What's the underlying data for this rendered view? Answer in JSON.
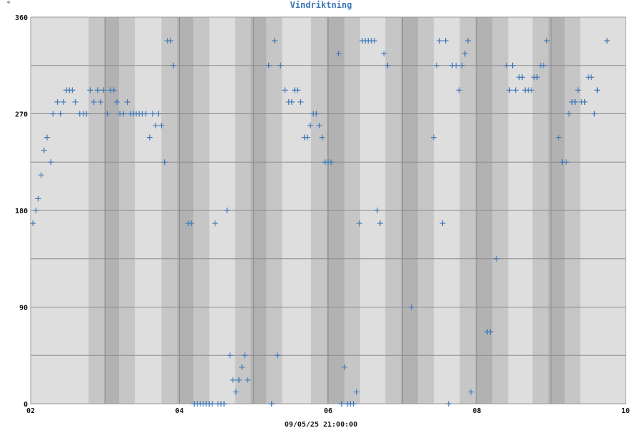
{
  "chart_data": {
    "type": "scatter",
    "title": "Vindriktning",
    "ylabel": "°",
    "xlabel": "09/05/25 21:00:00",
    "xlim": [
      2,
      10
    ],
    "ylim": [
      0,
      360
    ],
    "x_ticks": [
      2,
      4,
      6,
      8,
      10
    ],
    "x_tick_labels": [
      "02",
      "04",
      "06",
      "08",
      "10"
    ],
    "y_ticks": [
      0,
      90,
      180,
      270,
      360
    ],
    "y_tick_labels": [
      "0",
      "90",
      "180",
      "270",
      "360"
    ],
    "grid": true,
    "marker": "plus",
    "colors": {
      "points": "#3d77b8",
      "title": "#3d77b8",
      "plot_bg": "#dedede",
      "shade": "#c6c6c6",
      "dark_band": "#b2b2b2",
      "grid": "#8a8a8a"
    },
    "bands": [
      {
        "x0": 2.99,
        "x1": 3.19
      },
      {
        "x0": 3.97,
        "x1": 4.19
      },
      {
        "x0": 4.96,
        "x1": 5.17
      },
      {
        "x0": 5.98,
        "x1": 6.22
      },
      {
        "x0": 6.98,
        "x1": 7.21
      },
      {
        "x0": 7.98,
        "x1": 8.21
      },
      {
        "x0": 8.96,
        "x1": 9.18
      }
    ],
    "series": [
      {
        "points": [
          [
            2.03,
            168
          ],
          [
            2.07,
            180
          ],
          [
            2.1,
            191
          ],
          [
            2.14,
            213
          ],
          [
            2.18,
            236
          ],
          [
            2.22,
            248
          ],
          [
            2.27,
            225
          ],
          [
            2.3,
            270
          ],
          [
            2.36,
            281
          ],
          [
            2.4,
            270
          ],
          [
            2.44,
            281
          ],
          [
            2.48,
            292
          ],
          [
            2.52,
            292
          ],
          [
            2.56,
            292
          ],
          [
            2.6,
            281
          ],
          [
            2.66,
            270
          ],
          [
            2.71,
            270
          ],
          [
            2.75,
            270
          ],
          [
            2.8,
            292
          ],
          [
            2.85,
            281
          ],
          [
            2.9,
            292
          ],
          [
            2.94,
            281
          ],
          [
            2.98,
            292
          ],
          [
            3.03,
            270
          ],
          [
            3.07,
            292
          ],
          [
            3.12,
            292
          ],
          [
            3.16,
            281
          ],
          [
            3.2,
            270
          ],
          [
            3.25,
            270
          ],
          [
            3.3,
            281
          ],
          [
            3.34,
            270
          ],
          [
            3.38,
            270
          ],
          [
            3.42,
            270
          ],
          [
            3.46,
            270
          ],
          [
            3.5,
            270
          ],
          [
            3.55,
            270
          ],
          [
            3.6,
            248
          ],
          [
            3.64,
            270
          ],
          [
            3.68,
            259
          ],
          [
            3.72,
            270
          ],
          [
            3.76,
            259
          ],
          [
            3.8,
            225
          ],
          [
            3.84,
            338
          ],
          [
            3.88,
            338
          ],
          [
            3.92,
            315
          ],
          [
            4.12,
            168
          ],
          [
            4.16,
            168
          ],
          [
            4.2,
            0
          ],
          [
            4.24,
            0
          ],
          [
            4.28,
            0
          ],
          [
            4.32,
            0
          ],
          [
            4.36,
            0
          ],
          [
            4.4,
            0
          ],
          [
            4.44,
            0
          ],
          [
            4.48,
            168
          ],
          [
            4.52,
            0
          ],
          [
            4.56,
            0
          ],
          [
            4.6,
            0
          ],
          [
            4.64,
            180
          ],
          [
            4.68,
            45
          ],
          [
            4.72,
            22
          ],
          [
            4.76,
            11
          ],
          [
            4.8,
            22
          ],
          [
            4.84,
            34
          ],
          [
            4.88,
            45
          ],
          [
            4.92,
            22
          ],
          [
            5.2,
            315
          ],
          [
            5.24,
            0
          ],
          [
            5.28,
            338
          ],
          [
            5.32,
            45
          ],
          [
            5.36,
            315
          ],
          [
            5.42,
            292
          ],
          [
            5.47,
            281
          ],
          [
            5.51,
            281
          ],
          [
            5.55,
            292
          ],
          [
            5.59,
            292
          ],
          [
            5.63,
            281
          ],
          [
            5.68,
            248
          ],
          [
            5.72,
            248
          ],
          [
            5.76,
            259
          ],
          [
            5.8,
            270
          ],
          [
            5.84,
            270
          ],
          [
            5.88,
            259
          ],
          [
            5.92,
            248
          ],
          [
            5.96,
            225
          ],
          [
            6.0,
            225
          ],
          [
            6.04,
            225
          ],
          [
            6.14,
            326
          ],
          [
            6.18,
            0
          ],
          [
            6.22,
            34
          ],
          [
            6.26,
            0
          ],
          [
            6.3,
            0
          ],
          [
            6.34,
            0
          ],
          [
            6.38,
            11
          ],
          [
            6.42,
            168
          ],
          [
            6.46,
            338
          ],
          [
            6.5,
            338
          ],
          [
            6.54,
            338
          ],
          [
            6.58,
            338
          ],
          [
            6.62,
            338
          ],
          [
            6.66,
            180
          ],
          [
            6.7,
            168
          ],
          [
            6.75,
            326
          ],
          [
            6.8,
            315
          ],
          [
            7.12,
            90
          ],
          [
            7.42,
            248
          ],
          [
            7.46,
            315
          ],
          [
            7.5,
            338
          ],
          [
            7.54,
            168
          ],
          [
            7.58,
            338
          ],
          [
            7.62,
            0
          ],
          [
            7.67,
            315
          ],
          [
            7.72,
            315
          ],
          [
            7.76,
            292
          ],
          [
            7.8,
            315
          ],
          [
            7.84,
            326
          ],
          [
            7.88,
            338
          ],
          [
            7.92,
            11
          ],
          [
            8.14,
            67
          ],
          [
            8.18,
            67
          ],
          [
            8.26,
            135
          ],
          [
            8.4,
            315
          ],
          [
            8.44,
            292
          ],
          [
            8.48,
            315
          ],
          [
            8.52,
            292
          ],
          [
            8.57,
            304
          ],
          [
            8.61,
            304
          ],
          [
            8.65,
            292
          ],
          [
            8.69,
            292
          ],
          [
            8.73,
            292
          ],
          [
            8.77,
            304
          ],
          [
            8.81,
            304
          ],
          [
            8.86,
            315
          ],
          [
            8.9,
            315
          ],
          [
            8.94,
            338
          ],
          [
            9.1,
            248
          ],
          [
            9.15,
            225
          ],
          [
            9.2,
            225
          ],
          [
            9.24,
            270
          ],
          [
            9.28,
            281
          ],
          [
            9.32,
            281
          ],
          [
            9.36,
            292
          ],
          [
            9.41,
            281
          ],
          [
            9.45,
            281
          ],
          [
            9.5,
            304
          ],
          [
            9.54,
            304
          ],
          [
            9.58,
            270
          ],
          [
            9.62,
            292
          ],
          [
            9.75,
            338
          ]
        ]
      }
    ]
  }
}
